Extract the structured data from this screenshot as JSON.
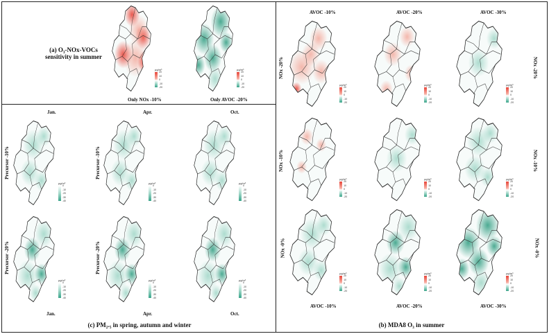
{
  "panel_a": {
    "title_line1": "(a) O₃-NOx-VOCs",
    "title_line2": "sensitivity in summer",
    "map_labels": [
      "Only NOx -10%",
      "Only AVOC -20%"
    ]
  },
  "panel_b": {
    "caption": "(b) MDA8 O₃ in summer",
    "col_labels": [
      "AVOC -10%",
      "AVOC -20%",
      "AVOC -30%"
    ],
    "row_labels": [
      "NOx -20%",
      "NOx -10%",
      "NOx -0%"
    ]
  },
  "panel_c": {
    "caption": "(c) PM₂.₅ in spring, autumn and winter",
    "col_labels": [
      "Jan.",
      "Apr.",
      "Oct."
    ],
    "row_labels": [
      "Precursor -10%",
      "Precursor -20%"
    ]
  },
  "colorbar": {
    "unit": "μg/m³",
    "warm_ticks": [
      "20",
      "10",
      "0",
      "-10",
      "-20"
    ],
    "cool_ticks": [
      "0",
      "-10",
      "-20",
      "-30",
      "-40"
    ]
  },
  "colors": {
    "increase": "#e8453a",
    "decrease": "#2e9c80",
    "neutral": "#ffffff"
  }
}
